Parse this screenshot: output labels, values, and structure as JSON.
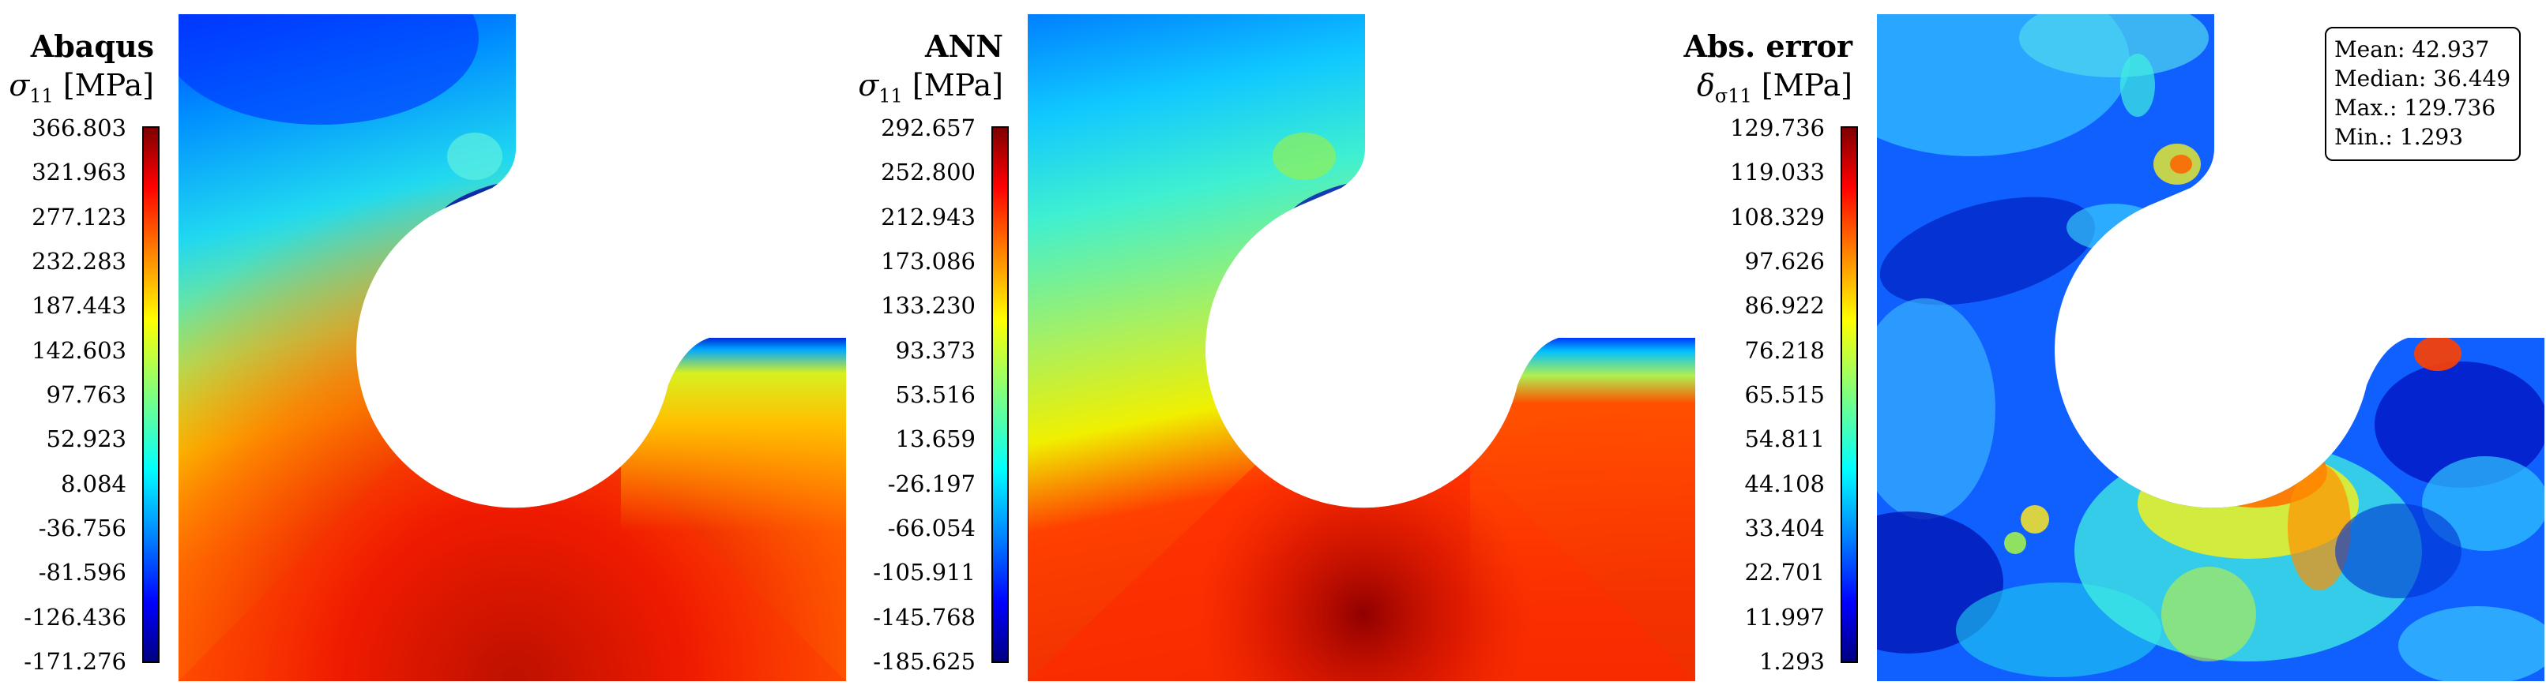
{
  "chart_data": [
    {
      "type": "heatmap",
      "title": "Abaqus",
      "label_symbol": "σ",
      "label_subscript": "11",
      "label_unit": "[MPa]",
      "colorbar": "jet",
      "ticks": [
        "366.803",
        "321.963",
        "277.123",
        "232.283",
        "187.443",
        "142.603",
        "97.763",
        "52.923",
        "8.084",
        "-36.756",
        "-81.596",
        "-126.436",
        "-171.276"
      ],
      "vmin": -171.276,
      "vmax": 366.803
    },
    {
      "type": "heatmap",
      "title": "ANN",
      "label_symbol": "σ",
      "label_subscript": "11",
      "label_unit": "[MPa]",
      "colorbar": "jet",
      "ticks": [
        "292.657",
        "252.800",
        "212.943",
        "173.086",
        "133.230",
        "93.373",
        "53.516",
        "13.659",
        "-26.197",
        "-66.054",
        "-105.911",
        "-145.768",
        "-185.625"
      ],
      "vmin": -185.625,
      "vmax": 292.657
    },
    {
      "type": "heatmap",
      "title": "Abs. error",
      "label_symbol": "δ",
      "label_subscript": "σ11",
      "label_unit": "[MPa]",
      "colorbar": "jet",
      "ticks": [
        "129.736",
        "119.033",
        "108.329",
        "97.626",
        "86.922",
        "76.218",
        "65.515",
        "54.811",
        "44.108",
        "33.404",
        "22.701",
        "11.997",
        "1.293"
      ],
      "vmin": 1.293,
      "vmax": 129.736
    }
  ],
  "stats": {
    "mean": "Mean: 42.937",
    "median": "Median: 36.449",
    "max": "Max.: 129.736",
    "min": "Min.: 1.293"
  }
}
